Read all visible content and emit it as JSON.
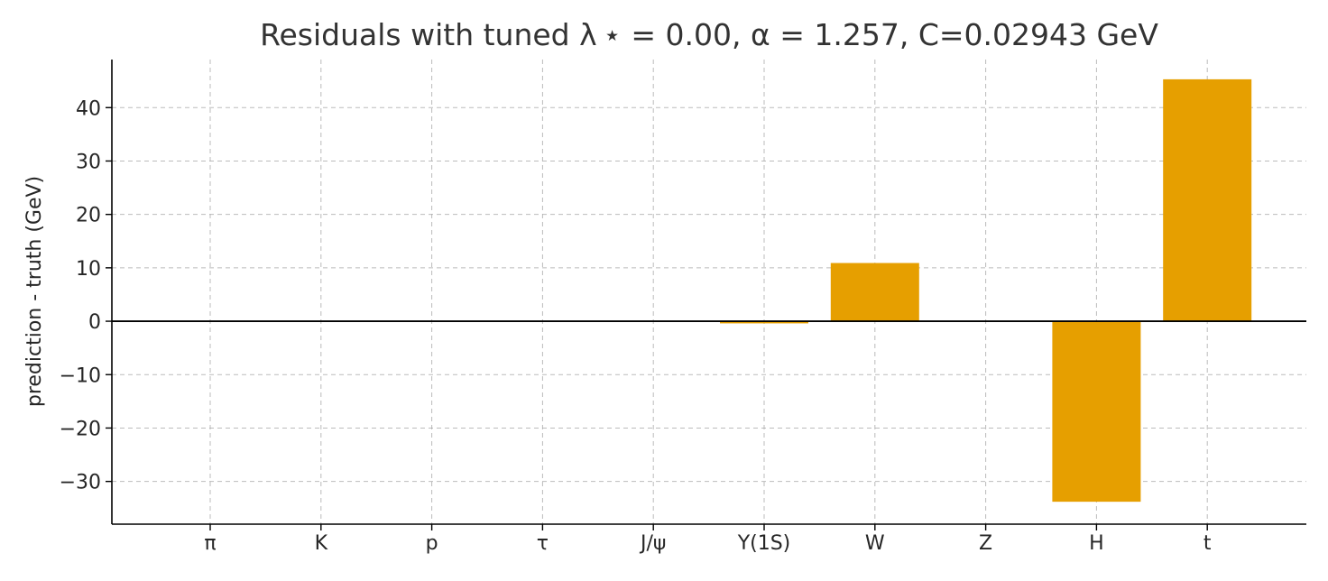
{
  "chart_data": {
    "type": "bar",
    "title": "Residuals with tuned λ ⋆ = 0.00, α = 1.257, C=0.02943 GeV",
    "xlabel": "",
    "ylabel": "prediction - truth (GeV)",
    "categories": [
      "π",
      "K",
      "p",
      "τ",
      "J/ψ",
      "Υ(1S)",
      "W",
      "Z",
      "H",
      "t"
    ],
    "values": [
      0.0,
      0.0,
      0.0,
      0.0,
      0.0,
      -0.4,
      10.9,
      0.0,
      -33.8,
      45.3
    ],
    "ylim": [
      -38,
      49
    ],
    "yticks": [
      -30,
      -20,
      -10,
      0,
      10,
      20,
      30,
      40
    ],
    "ytick_labels": [
      "−30",
      "−20",
      "−10",
      "0",
      "10",
      "20",
      "30",
      "40"
    ],
    "grid": true,
    "bar_color": "#e69f00",
    "zero_line": true
  }
}
